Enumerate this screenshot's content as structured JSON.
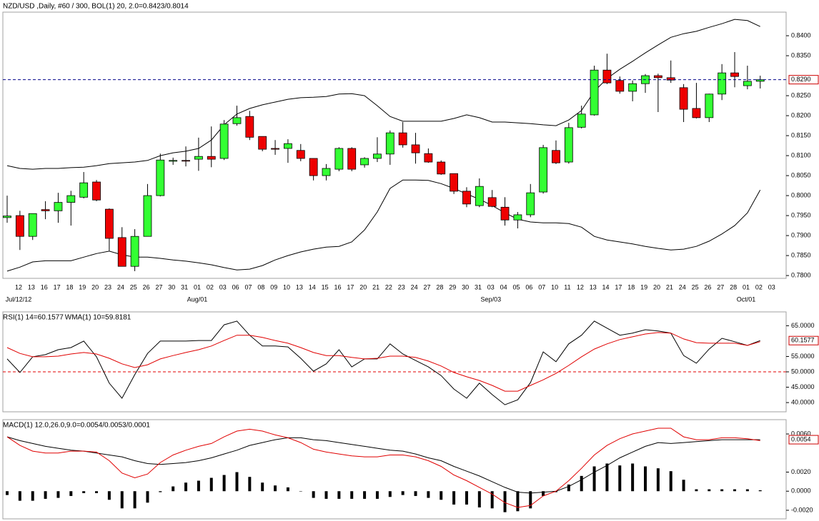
{
  "chart_data": [
    {
      "type": "candlestick",
      "title": "NZD/USD ,Daily, #60 / 300, BOL(1) 20, 2.0=0.8423/0.8014",
      "categories": [
        "12",
        "13",
        "16",
        "17",
        "18",
        "19",
        "20",
        "23",
        "24",
        "25",
        "26",
        "27",
        "30",
        "31",
        "01",
        "02",
        "03",
        "06",
        "07",
        "08",
        "09",
        "10",
        "13",
        "14",
        "15",
        "16",
        "17",
        "20",
        "21",
        "22",
        "23",
        "24",
        "27",
        "28",
        "29",
        "30",
        "31",
        "03",
        "04",
        "05",
        "06",
        "07",
        "10",
        "11",
        "12",
        "13",
        "14",
        "17",
        "18",
        "19",
        "20",
        "21",
        "24",
        "25",
        "26",
        "27",
        "28",
        "01",
        "02",
        "03"
      ],
      "month_labels": [
        "Jul/12/12",
        null,
        null,
        null,
        null,
        null,
        null,
        null,
        null,
        null,
        null,
        null,
        null,
        null,
        "Aug/01",
        null,
        null,
        null,
        null,
        null,
        null,
        null,
        null,
        null,
        null,
        null,
        null,
        null,
        null,
        null,
        null,
        null,
        null,
        null,
        null,
        null,
        null,
        "Sep/03",
        null,
        null,
        null,
        null,
        null,
        null,
        null,
        null,
        null,
        null,
        null,
        null,
        null,
        null,
        null,
        null,
        null,
        null,
        null,
        "Oct/01",
        null,
        null
      ],
      "open": [
        0.7945,
        0.795,
        0.7898,
        0.7965,
        0.7962,
        0.7983,
        0.7996,
        0.8034,
        0.7966,
        0.7895,
        0.7823,
        0.7898,
        0.8,
        0.8086,
        0.8088,
        0.8091,
        0.8098,
        0.8093,
        0.818,
        0.8198,
        0.8148,
        0.8118,
        0.8118,
        0.8113,
        0.8093,
        0.805,
        0.8066,
        0.8118,
        0.8077,
        0.8093,
        0.8104,
        0.8157,
        0.8127,
        0.8105,
        0.8084,
        0.8055,
        0.8011,
        0.7975,
        0.7995,
        0.7971,
        0.7939,
        0.7952,
        0.8009,
        0.8113,
        0.8084,
        0.8171,
        0.8202,
        0.8314,
        0.8288,
        0.8261,
        0.828,
        0.83,
        0.8295,
        0.827,
        0.8218,
        0.8195,
        0.8254,
        0.8307,
        0.8275,
        0.8286
      ],
      "high": [
        0.8,
        0.7962,
        0.7955,
        0.7986,
        0.8007,
        0.8012,
        0.8059,
        0.8039,
        0.7968,
        0.7921,
        0.7916,
        0.8029,
        0.8105,
        0.8095,
        0.8123,
        0.8145,
        0.8173,
        0.8189,
        0.8225,
        0.8212,
        0.8148,
        0.8139,
        0.8141,
        0.8129,
        0.8093,
        0.8079,
        0.8121,
        0.8121,
        0.8096,
        0.8146,
        0.8163,
        0.8184,
        0.8157,
        0.8118,
        0.8088,
        0.8055,
        0.8021,
        0.8043,
        0.8014,
        0.7996,
        0.7959,
        0.8029,
        0.8127,
        0.8138,
        0.8182,
        0.8225,
        0.8325,
        0.8355,
        0.8298,
        0.8288,
        0.8304,
        0.8305,
        0.8338,
        0.8279,
        0.8282,
        0.8255,
        0.8329,
        0.8359,
        0.8325,
        0.83
      ],
      "low": [
        0.7932,
        0.7864,
        0.7889,
        0.7941,
        0.7932,
        0.7925,
        0.7993,
        0.7986,
        0.7862,
        0.7823,
        0.7811,
        0.7898,
        0.7998,
        0.8077,
        0.8073,
        0.8062,
        0.8071,
        0.8089,
        0.8175,
        0.8139,
        0.8111,
        0.8102,
        0.8082,
        0.8086,
        0.8038,
        0.8038,
        0.8061,
        0.8061,
        0.807,
        0.8084,
        0.8077,
        0.812,
        0.808,
        0.8082,
        0.8052,
        0.8004,
        0.7971,
        0.7971,
        0.7971,
        0.7925,
        0.7918,
        0.7946,
        0.8005,
        0.8079,
        0.808,
        0.8168,
        0.82,
        0.8279,
        0.8255,
        0.8236,
        0.8257,
        0.8209,
        0.8282,
        0.8184,
        0.8193,
        0.8184,
        0.8239,
        0.8271,
        0.8266,
        0.8268
      ],
      "close": [
        0.7949,
        0.7898,
        0.7955,
        0.7962,
        0.7983,
        0.8,
        0.8032,
        0.7989,
        0.7893,
        0.7823,
        0.7898,
        0.8,
        0.8089,
        0.8088,
        0.8088,
        0.8098,
        0.8091,
        0.8179,
        0.8195,
        0.8146,
        0.8116,
        0.8116,
        0.813,
        0.8093,
        0.805,
        0.8068,
        0.8118,
        0.8066,
        0.8093,
        0.8104,
        0.8157,
        0.8127,
        0.8107,
        0.8084,
        0.8054,
        0.8011,
        0.7979,
        0.8023,
        0.7973,
        0.7939,
        0.7952,
        0.8007,
        0.812,
        0.8082,
        0.817,
        0.8204,
        0.8314,
        0.8282,
        0.8261,
        0.828,
        0.83,
        0.8295,
        0.8289,
        0.8216,
        0.8195,
        0.8254,
        0.8307,
        0.8298,
        0.8286,
        0.829
      ],
      "up_color": "#33ff33",
      "down_color": "#ee0000",
      "series": [
        {
          "color": "#000000",
          "values": [
            0.8075,
            0.8068,
            0.8066,
            0.8068,
            0.8068,
            0.807,
            0.8071,
            0.8075,
            0.808,
            0.8082,
            0.8084,
            0.8088,
            0.81,
            0.8107,
            0.8111,
            0.8118,
            0.8139,
            0.8177,
            0.8204,
            0.8218,
            0.8227,
            0.8234,
            0.8241,
            0.8245,
            0.8246,
            0.8248,
            0.8254,
            0.8255,
            0.825,
            0.8225,
            0.8198,
            0.8186,
            0.8186,
            0.8186,
            0.8186,
            0.8193,
            0.8202,
            0.8195,
            0.8184,
            0.8184,
            0.8182,
            0.818,
            0.8177,
            0.8175,
            0.8189,
            0.8213,
            0.8261,
            0.8293,
            0.8316,
            0.8336,
            0.8357,
            0.8377,
            0.8396,
            0.8405,
            0.8411,
            0.8421,
            0.843,
            0.8441,
            0.8438,
            0.8423
          ]
        },
        {
          "color": "#000000",
          "values": [
            0.7811,
            0.7821,
            0.7834,
            0.7837,
            0.7837,
            0.7837,
            0.7846,
            0.7855,
            0.7861,
            0.7852,
            0.7846,
            0.7846,
            0.7843,
            0.7839,
            0.7836,
            0.7832,
            0.7827,
            0.782,
            0.7814,
            0.7816,
            0.7825,
            0.7839,
            0.785,
            0.7859,
            0.7866,
            0.7871,
            0.7873,
            0.7884,
            0.7914,
            0.7959,
            0.8018,
            0.8039,
            0.8039,
            0.8038,
            0.803,
            0.8018,
            0.8004,
            0.7991,
            0.7975,
            0.7957,
            0.7941,
            0.7934,
            0.7932,
            0.7932,
            0.793,
            0.7921,
            0.7898,
            0.7889,
            0.7884,
            0.7879,
            0.7873,
            0.7868,
            0.7864,
            0.7866,
            0.7873,
            0.7886,
            0.7904,
            0.7925,
            0.7957,
            0.8014
          ]
        }
      ],
      "ylim": [
        0.7793,
        0.8459
      ],
      "yticks": [
        {
          "value": 0.84,
          "label": "0.8400"
        },
        {
          "value": 0.835,
          "label": "0.8350"
        },
        {
          "value": 0.825,
          "label": "0.8250"
        },
        {
          "value": 0.82,
          "label": "0.8200"
        },
        {
          "value": 0.815,
          "label": "0.8150"
        },
        {
          "value": 0.81,
          "label": "0.8100"
        },
        {
          "value": 0.805,
          "label": "0.8050"
        },
        {
          "value": 0.8,
          "label": "0.8000"
        },
        {
          "value": 0.795,
          "label": "0.7950"
        },
        {
          "value": 0.79,
          "label": "0.7900"
        },
        {
          "value": 0.785,
          "label": "0.7850"
        },
        {
          "value": 0.78,
          "label": "0.7800"
        }
      ],
      "last_label": {
        "value": 0.829,
        "label": "0.8290"
      },
      "last_label_color": "#cc0000",
      "last_line_color": "#00008b"
    },
    {
      "type": "line",
      "series": [
        {
          "name": "RSI(1) 14=60.1577",
          "color": "#000000",
          "values": [
            54.2,
            49.8,
            54.9,
            55.6,
            57.2,
            57.9,
            60.0,
            54.9,
            46.3,
            41.4,
            49.1,
            56.0,
            60.0,
            60.0,
            60.0,
            60.2,
            60.2,
            65.3,
            66.5,
            61.9,
            58.4,
            58.4,
            58.1,
            54.4,
            50.2,
            52.6,
            57.2,
            51.6,
            54.2,
            54.2,
            59.1,
            55.8,
            53.7,
            51.6,
            48.8,
            44.4,
            41.4,
            46.3,
            42.6,
            39.3,
            40.9,
            46.5,
            56.5,
            53.3,
            59.1,
            61.9,
            66.5,
            64.2,
            61.9,
            62.6,
            63.7,
            63.3,
            62.6,
            55.3,
            52.8,
            57.4,
            60.9,
            59.8,
            58.6,
            60.1577
          ]
        },
        {
          "name": "WMA(1) 10=59.8181",
          "color": "#e00000",
          "values": [
            57.9,
            56.0,
            54.9,
            54.9,
            55.1,
            55.8,
            56.3,
            55.8,
            54.4,
            52.6,
            51.4,
            52.3,
            54.2,
            55.3,
            56.3,
            57.2,
            58.4,
            60.2,
            61.9,
            61.9,
            61.2,
            60.2,
            59.3,
            57.9,
            56.3,
            55.3,
            55.3,
            54.7,
            54.2,
            54.4,
            55.1,
            55.1,
            54.7,
            53.5,
            51.9,
            49.8,
            48.4,
            47.2,
            45.6,
            43.7,
            43.7,
            45.6,
            47.4,
            49.5,
            52.1,
            54.9,
            57.4,
            59.1,
            60.5,
            61.4,
            62.3,
            62.8,
            62.6,
            60.7,
            59.5,
            59.3,
            59.3,
            59.3,
            58.6,
            59.8181
          ]
        }
      ],
      "ylim": [
        37,
        69.5
      ],
      "yticks": [
        {
          "value": 65,
          "label": "65.0000"
        },
        {
          "value": 55,
          "label": "55.0000"
        },
        {
          "value": 50,
          "label": "50.0000"
        },
        {
          "value": 45,
          "label": "45.0000"
        },
        {
          "value": 40,
          "label": "40.0000"
        }
      ],
      "level": 50,
      "level_color": "#e00000",
      "last_label": {
        "value": 60.1577,
        "label": "60.1577"
      },
      "last_label_color": "#cc0000"
    },
    {
      "type": "macd",
      "title": "MACD(1) 12.0,26.0,9.0=0.0054/0.0053/0.0001",
      "title_color": "#e00000",
      "histogram": [
        -0.0004,
        -0.001,
        -0.001,
        -0.0008,
        -0.0007,
        -0.0005,
        -0.0002,
        -0.0002,
        -0.0009,
        -0.0018,
        -0.0018,
        -0.0012,
        -0.0001,
        0.0005,
        0.0009,
        0.0011,
        0.0014,
        0.0017,
        0.002,
        0.0015,
        0.0009,
        0.0006,
        0.0004,
        0.0,
        -0.0007,
        -0.0008,
        -0.0008,
        -0.0008,
        -0.0008,
        -0.0008,
        -0.0006,
        -0.0004,
        -0.0005,
        -0.0007,
        -0.0009,
        -0.0014,
        -0.0014,
        -0.0017,
        -0.0018,
        -0.0022,
        -0.0021,
        -0.0018,
        -0.0005,
        -0.0001,
        0.0007,
        0.0016,
        0.0026,
        0.0029,
        0.0027,
        0.0029,
        0.0026,
        0.0024,
        0.0021,
        0.0012,
        0.0002,
        0.0002,
        0.0002,
        0.0002,
        0.0002,
        0.0001
      ],
      "histogram_color": "#000000",
      "series": [
        {
          "color": "#000000",
          "values": [
            0.0057,
            0.0053,
            0.005,
            0.0047,
            0.0045,
            0.0043,
            0.0042,
            0.004,
            0.0038,
            0.0036,
            0.0032,
            0.0029,
            0.0028,
            0.0029,
            0.003,
            0.0032,
            0.0035,
            0.0039,
            0.0043,
            0.0048,
            0.0051,
            0.0054,
            0.0056,
            0.0056,
            0.0054,
            0.0053,
            0.0051,
            0.0049,
            0.0047,
            0.0045,
            0.0043,
            0.0042,
            0.0039,
            0.0035,
            0.0032,
            0.0026,
            0.0021,
            0.0016,
            0.001,
            0.0004,
            -0.0001,
            -0.0002,
            -0.0001,
            0.0,
            0.0005,
            0.0012,
            0.002,
            0.0027,
            0.0035,
            0.0041,
            0.0047,
            0.0051,
            0.005,
            0.0051,
            0.0052,
            0.0053,
            0.0054,
            0.0054,
            0.0054,
            0.0054
          ]
        },
        {
          "color": "#e00000",
          "values": [
            0.0057,
            0.0048,
            0.0042,
            0.004,
            0.004,
            0.0042,
            0.0042,
            0.0041,
            0.0032,
            0.0019,
            0.0014,
            0.0018,
            0.003,
            0.0038,
            0.0043,
            0.0047,
            0.005,
            0.0057,
            0.0063,
            0.0065,
            0.0063,
            0.0059,
            0.0056,
            0.0051,
            0.0044,
            0.0041,
            0.0039,
            0.0037,
            0.0036,
            0.0036,
            0.0038,
            0.0038,
            0.0036,
            0.0032,
            0.0026,
            0.0017,
            0.0011,
            0.0004,
            -0.0003,
            -0.0012,
            -0.0017,
            -0.0015,
            -0.0005,
            0.0,
            0.0011,
            0.0024,
            0.0038,
            0.0048,
            0.0055,
            0.006,
            0.0063,
            0.0066,
            0.0066,
            0.0057,
            0.0054,
            0.0054,
            0.0056,
            0.0056,
            0.0055,
            0.0053
          ]
        }
      ],
      "ylim": [
        -0.0029,
        0.0075
      ],
      "yticks": [
        {
          "value": 0.006,
          "label": "0.0060"
        },
        {
          "value": 0.002,
          "label": "0.0020"
        },
        {
          "value": 0,
          "label": "0.0000"
        },
        {
          "value": -0.002,
          "label": "-0.0020"
        }
      ],
      "last_label": {
        "value": 0.0054,
        "label": "0.0054"
      },
      "last_label_color": "#cc0000"
    }
  ]
}
